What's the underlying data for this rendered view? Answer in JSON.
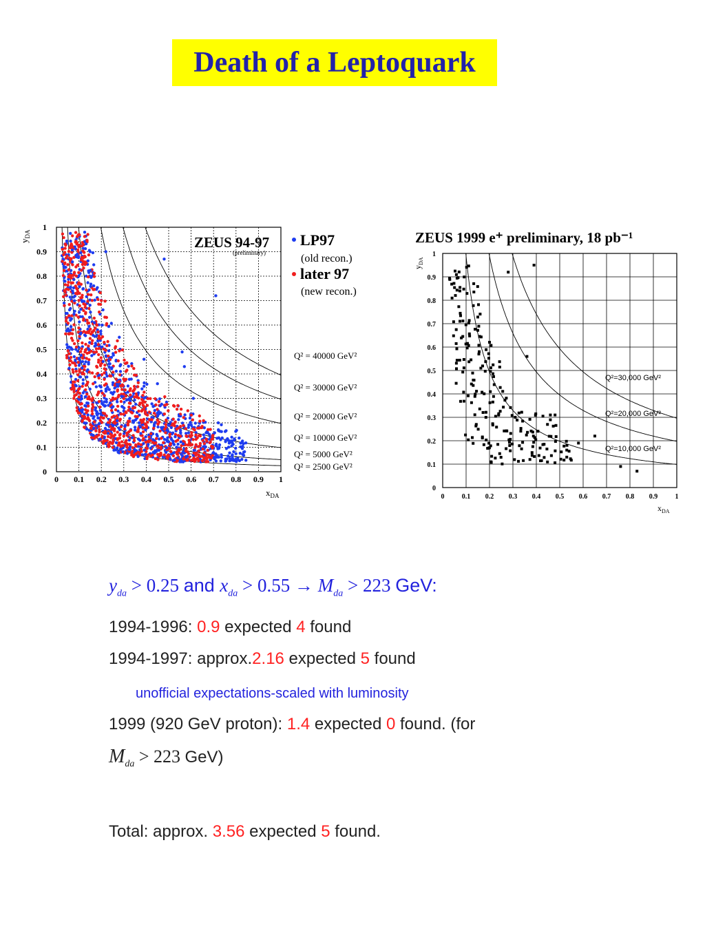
{
  "title": "Death of a Leptoquark",
  "left_plot": {
    "header": "ZEUS 94-97",
    "subheader": "(preliminary)",
    "ylabel": "y",
    "ylabel_sub": "DA",
    "xlabel": "x",
    "xlabel_sub": "DA",
    "legend": [
      {
        "label": "LP97",
        "note": "(old recon.)",
        "color": "#1e3cf0"
      },
      {
        "label": "later 97",
        "note": "(new recon.)",
        "color": "#f01e1e"
      }
    ],
    "q2_labels": [
      "Q² = 40000 GeV²",
      "Q² = 30000 GeV²",
      "Q² = 20000 GeV²",
      "Q² = 10000 GeV²",
      "Q² = 5000 GeV²",
      "Q² = 2500 GeV²"
    ],
    "xticks": [
      "0",
      "0.1",
      "0.2",
      "0.3",
      "0.4",
      "0.5",
      "0.6",
      "0.7",
      "0.8",
      "0.9",
      "1"
    ],
    "yticks": [
      "0",
      "0.1",
      "0.2",
      "0.3",
      "0.4",
      "0.5",
      "0.6",
      "0.7",
      "0.8",
      "0.9",
      "1"
    ]
  },
  "right_plot": {
    "header": "ZEUS 1999 e⁺ preliminary, 18 pb⁻¹",
    "ylabel": "y",
    "ylabel_sub": "DA",
    "xlabel": "x",
    "xlabel_sub": "DA",
    "q2_labels": [
      "Q²=30,000 GeV²",
      "Q²=20,000 GeV²",
      "Q²=10,000 GeV²"
    ],
    "xticks": [
      "0",
      "0.1",
      "0.2",
      "0.3",
      "0.4",
      "0.5",
      "0.6",
      "0.7",
      "0.8",
      "0.9",
      "1"
    ],
    "yticks": [
      "0",
      "0.1",
      "0.2",
      "0.3",
      "0.4",
      "0.5",
      "0.6",
      "0.7",
      "0.8",
      "0.9",
      "1"
    ]
  },
  "chart_data": [
    {
      "type": "scatter",
      "title": "ZEUS 94-97",
      "xlabel": "x_DA",
      "ylabel": "y_DA",
      "xlim": [
        0,
        1
      ],
      "ylim": [
        0,
        1
      ],
      "grid": true,
      "legend_position": "right",
      "curves_q2": [
        2500,
        5000,
        10000,
        20000,
        30000,
        40000
      ],
      "series": [
        {
          "name": "LP97",
          "color": "#1e3cf0",
          "points": "dense cloud along low-Q² region, x 0.03–0.83, y 0.05–0.97"
        },
        {
          "name": "later 97",
          "color": "#f01e1e",
          "points": "dense cloud along low-Q² region, x 0.03–0.7, y 0.05–0.97"
        }
      ]
    },
    {
      "type": "scatter",
      "title": "ZEUS 1999 e⁺ preliminary, 18 pb⁻¹",
      "xlabel": "x_DA",
      "ylabel": "y_DA",
      "xlim": [
        0,
        1
      ],
      "ylim": [
        0,
        1
      ],
      "grid": true,
      "curves_q2": [
        10000,
        20000,
        30000
      ],
      "series": [
        {
          "color": "#000000",
          "points": "events along low-Q² region, x 0.05–0.83, y 0.07–0.95"
        }
      ]
    }
  ],
  "text": {
    "cut_line": {
      "y": "y",
      "y_sub": "da",
      "gt1": " > 0.25 ",
      "and": "and",
      "x": "x",
      "x_sub": "da",
      "gt2": " > 0.55 → ",
      "m": "M",
      "m_sub": "da",
      "gt3": " > 223 ",
      "unit": "GeV:"
    },
    "l1": {
      "label": "1994-1996: ",
      "exp": "0.9",
      "mid": " expected ",
      "found": "4",
      "end": " found"
    },
    "l2": {
      "label": "1994-1997: approx.",
      "exp": "2.16",
      "mid": " expected ",
      "found": "5",
      "end": " found"
    },
    "note": "unofficial expectations-scaled with luminosity",
    "l3": {
      "label": "1999 (920 GeV proton): ",
      "exp": "1.4",
      "mid": " expected ",
      "found": "0",
      "end": " found. (for"
    },
    "l4": {
      "m": "M",
      "m_sub": "da",
      "gt": " > 223 ",
      "unit": "GeV)"
    },
    "total": {
      "label": "Total: approx. ",
      "exp": "3.56",
      "mid": " expected ",
      "found": "5",
      "end": " found."
    }
  }
}
